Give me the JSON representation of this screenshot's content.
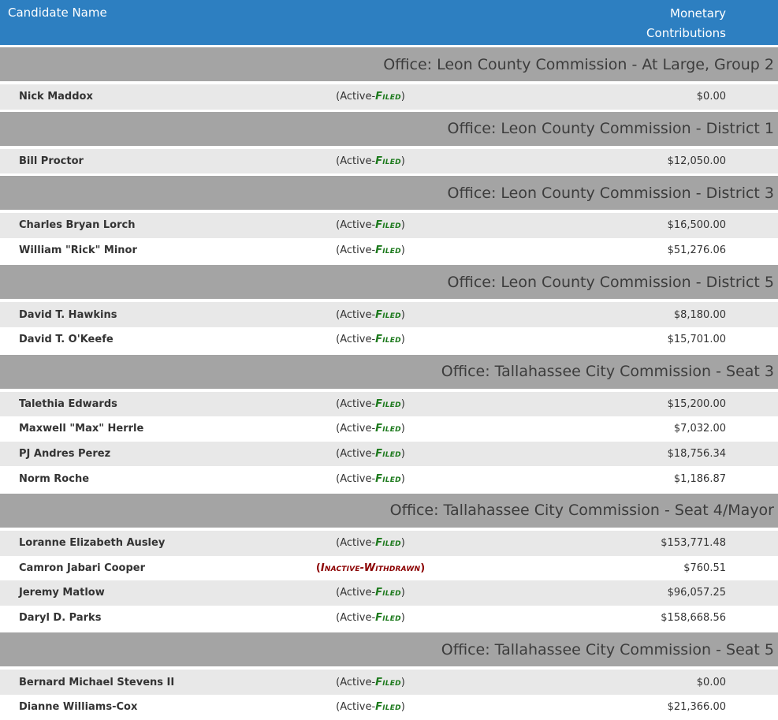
{
  "colors": {
    "header_bg": "#2d7fc1",
    "header_text": "#ffffff",
    "office_bg": "#a4a4a4",
    "office_text": "#3c3c3c",
    "row_shade": "#e8e8e8",
    "name_text": "#333333",
    "amount_text": "#333333",
    "status_green": "#1d7a1d",
    "status_red": "#8b0000"
  },
  "header": {
    "candidate": "Candidate Name",
    "monetary": "Monetary Contributions"
  },
  "groups": [
    {
      "office": "Office: Leon County Commission - At Large, Group 2",
      "rows": [
        {
          "name": "Nick Maddox",
          "status_prefix": "(Active-",
          "status_word": "Filed",
          "status_suffix": ")",
          "amount": "$0.00"
        }
      ]
    },
    {
      "office": "Office: Leon County Commission - District 1",
      "rows": [
        {
          "name": "Bill Proctor",
          "status_prefix": "(Active-",
          "status_word": "Filed",
          "status_suffix": ")",
          "amount": "$12,050.00"
        }
      ]
    },
    {
      "office": "Office: Leon County Commission - District 3",
      "rows": [
        {
          "name": "Charles Bryan Lorch",
          "status_prefix": "(Active-",
          "status_word": "Filed",
          "status_suffix": ")",
          "amount": "$16,500.00"
        },
        {
          "name": "William \"Rick\" Minor",
          "status_prefix": "(Active-",
          "status_word": "Filed",
          "status_suffix": ")",
          "amount": "$51,276.06"
        }
      ]
    },
    {
      "office": "Office: Leon County Commission - District 5",
      "rows": [
        {
          "name": "David T. Hawkins",
          "status_prefix": "(Active-",
          "status_word": "Filed",
          "status_suffix": ")",
          "amount": "$8,180.00"
        },
        {
          "name": "David T. O'Keefe",
          "status_prefix": "(Active-",
          "status_word": "Filed",
          "status_suffix": ")",
          "amount": "$15,701.00"
        }
      ]
    },
    {
      "office": "Office: Tallahassee City Commission - Seat 3",
      "rows": [
        {
          "name": "Talethia Edwards",
          "status_prefix": "(Active-",
          "status_word": "Filed",
          "status_suffix": ")",
          "amount": "$15,200.00"
        },
        {
          "name": "Maxwell \"Max\" Herrle",
          "status_prefix": "(Active-",
          "status_word": "Filed",
          "status_suffix": ")",
          "amount": "$7,032.00"
        },
        {
          "name": "PJ Andres Perez",
          "status_prefix": "(Active-",
          "status_word": "Filed",
          "status_suffix": ")",
          "amount": "$18,756.34"
        },
        {
          "name": "Norm Roche",
          "status_prefix": "(Active-",
          "status_word": "Filed",
          "status_suffix": ")",
          "amount": "$1,186.87"
        }
      ]
    },
    {
      "office": "Office: Tallahassee City Commission - Seat 4/Mayor",
      "rows": [
        {
          "name": "Loranne Elizabeth Ausley",
          "status_prefix": "(Active-",
          "status_word": "Filed",
          "status_suffix": ")",
          "amount": "$153,771.48"
        },
        {
          "name": "Camron Jabari Cooper",
          "status_prefix": "(",
          "status_word": "Inactive-Withdrawn",
          "status_suffix": ")",
          "amount": "$760.51"
        },
        {
          "name": "Jeremy Matlow",
          "status_prefix": "(Active-",
          "status_word": "Filed",
          "status_suffix": ")",
          "amount": "$96,057.25"
        },
        {
          "name": "Daryl D. Parks",
          "status_prefix": "(Active-",
          "status_word": "Filed",
          "status_suffix": ")",
          "amount": "$158,668.56"
        }
      ]
    },
    {
      "office": "Office: Tallahassee City Commission - Seat 5",
      "rows": [
        {
          "name": "Bernard Michael Stevens II",
          "status_prefix": "(Active-",
          "status_word": "Filed",
          "status_suffix": ")",
          "amount": "$0.00"
        },
        {
          "name": "Dianne Williams-Cox",
          "status_prefix": "(Active-",
          "status_word": "Filed",
          "status_suffix": ")",
          "amount": "$21,366.00"
        }
      ]
    }
  ]
}
